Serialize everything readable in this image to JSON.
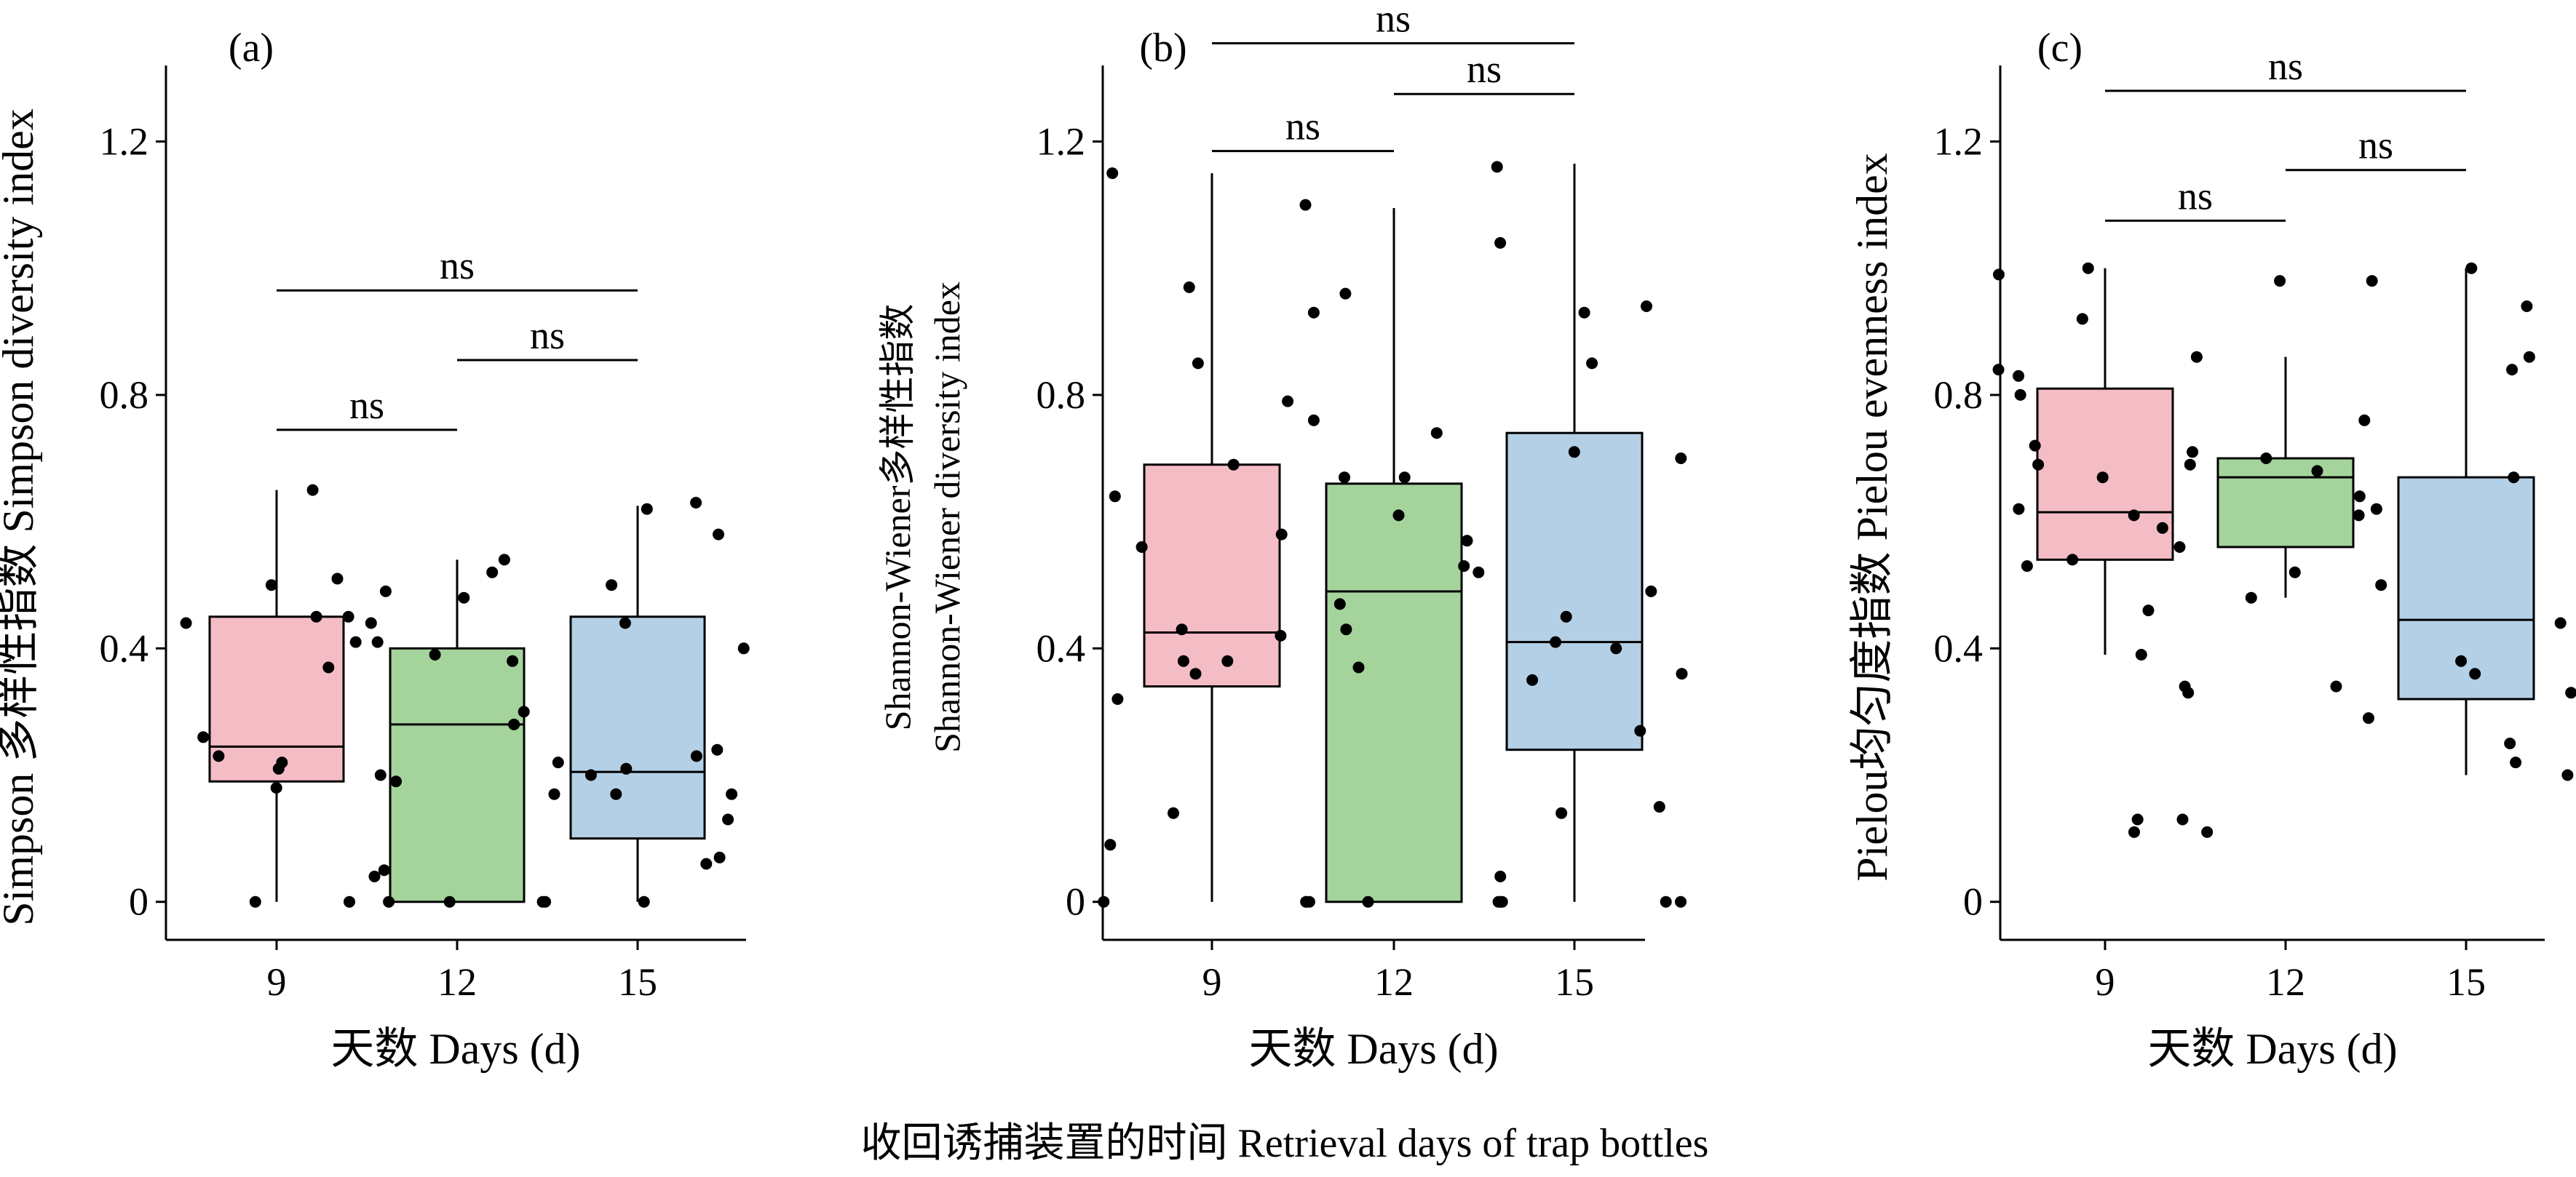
{
  "figure": {
    "caption": "收回诱捕装置的时间 Retrieval days of trap bottles"
  },
  "colors": {
    "box_9": "#f4bcc4",
    "box_12": "#a4d49c",
    "box_15": "#b4d0e6",
    "point": "#000000"
  },
  "chart_data": [
    {
      "type": "box",
      "panel_label": "(a)",
      "ylabel": "Simpson 多样性指数 Simpson diversity index",
      "xlabel": "天数 Days (d)",
      "categories": [
        "9",
        "12",
        "15"
      ],
      "ylim": [
        -0.06,
        1.32
      ],
      "yticks": [
        0,
        0.4,
        0.8,
        1.2
      ],
      "ytick_labels": [
        "0",
        "0.4",
        "0.8",
        "1.2"
      ],
      "grid": false,
      "boxes": [
        {
          "category": "9",
          "whisker_low": 0,
          "q1": 0.19,
          "median": 0.245,
          "q3": 0.45,
          "whisker_high": 0.65
        },
        {
          "category": "12",
          "whisker_low": 0,
          "q1": 0,
          "median": 0.28,
          "q3": 0.4,
          "whisker_high": 0.54
        },
        {
          "category": "15",
          "whisker_low": 0,
          "q1": 0.1,
          "median": 0.205,
          "q3": 0.45,
          "whisker_high": 0.625
        }
      ],
      "points": [
        {
          "category": "9",
          "values": [
            0.65,
            0.51,
            0.5,
            0.45,
            0.45,
            0.44,
            0.44,
            0.37,
            0.26,
            0.23,
            0.22,
            0.21,
            0.2,
            0.18,
            0.05,
            0.04,
            0.0
          ]
        },
        {
          "category": "12",
          "values": [
            0.54,
            0.52,
            0.49,
            0.48,
            0.41,
            0.41,
            0.39,
            0.38,
            0.3,
            0.28,
            0.22,
            0.19,
            0.17,
            0.0,
            0.0,
            0.0,
            0.0
          ]
        },
        {
          "category": "15",
          "values": [
            0.63,
            0.62,
            0.58,
            0.5,
            0.44,
            0.4,
            0.24,
            0.23,
            0.21,
            0.2,
            0.17,
            0.17,
            0.13,
            0.07,
            0.06,
            0.0,
            0.0
          ]
        }
      ],
      "significance": [
        {
          "from": "9",
          "to": "12",
          "label": "ns",
          "y": 0.745
        },
        {
          "from": "12",
          "to": "15",
          "label": "ns",
          "y": 0.855
        },
        {
          "from": "9",
          "to": "15",
          "label": "ns",
          "y": 0.965
        }
      ]
    },
    {
      "type": "box",
      "panel_label": "(b)",
      "ylabel": "Shannon-Wiener多样性指数",
      "ylabel2": "Shannon-Wiener diversity index",
      "xlabel": "天数 Days (d)",
      "categories": [
        "9",
        "12",
        "15"
      ],
      "ylim": [
        -0.06,
        1.32
      ],
      "yticks": [
        0,
        0.4,
        0.8,
        1.2
      ],
      "ytick_labels": [
        "0",
        "0.4",
        "0.8",
        "1.2"
      ],
      "grid": false,
      "boxes": [
        {
          "category": "9",
          "whisker_low": 0,
          "q1": 0.34,
          "median": 0.425,
          "q3": 0.69,
          "whisker_high": 1.15
        },
        {
          "category": "12",
          "whisker_low": 0,
          "q1": 0,
          "median": 0.49,
          "q3": 0.66,
          "whisker_high": 1.095
        },
        {
          "category": "15",
          "whisker_low": 0,
          "q1": 0.24,
          "median": 0.41,
          "q3": 0.74,
          "whisker_high": 1.165
        }
      ],
      "points": [
        {
          "category": "9",
          "values": [
            1.15,
            0.97,
            0.85,
            0.79,
            0.76,
            0.69,
            0.64,
            0.58,
            0.56,
            0.43,
            0.42,
            0.38,
            0.38,
            0.36,
            0.32,
            0.14,
            0.09,
            0.0,
            0.0
          ]
        },
        {
          "category": "12",
          "values": [
            1.1,
            0.96,
            0.93,
            0.74,
            0.67,
            0.67,
            0.61,
            0.57,
            0.53,
            0.52,
            0.47,
            0.43,
            0.37,
            0.0,
            0.0,
            0.0,
            0.0,
            0.0
          ]
        },
        {
          "category": "15",
          "values": [
            1.16,
            1.04,
            0.94,
            0.93,
            0.85,
            0.71,
            0.7,
            0.49,
            0.45,
            0.41,
            0.4,
            0.36,
            0.35,
            0.27,
            0.15,
            0.14,
            0.04,
            0.0,
            0.0,
            0.0
          ]
        }
      ],
      "significance": [
        {
          "from": "9",
          "to": "12",
          "label": "ns",
          "y": 1.185
        },
        {
          "from": "12",
          "to": "15",
          "label": "ns",
          "y": 1.275
        },
        {
          "from": "9",
          "to": "15",
          "label": "ns",
          "y": 1.355
        }
      ]
    },
    {
      "type": "box",
      "panel_label": "(c)",
      "ylabel": "Pielou均匀度指数 Pielou evenness index",
      "xlabel": "天数 Days (d)",
      "categories": [
        "9",
        "12",
        "15"
      ],
      "ylim": [
        -0.06,
        1.32
      ],
      "yticks": [
        0,
        0.4,
        0.8,
        1.2
      ],
      "ytick_labels": [
        "0",
        "0.4",
        "0.8",
        "1.2"
      ],
      "grid": false,
      "boxes": [
        {
          "category": "9",
          "whisker_low": 0.39,
          "q1": 0.54,
          "median": 0.615,
          "q3": 0.81,
          "whisker_high": 1.0
        },
        {
          "category": "12",
          "whisker_low": 0.48,
          "q1": 0.56,
          "median": 0.67,
          "q3": 0.7,
          "whisker_high": 0.86
        },
        {
          "category": "15",
          "whisker_low": 0.2,
          "q1": 0.32,
          "median": 0.445,
          "q3": 0.67,
          "whisker_high": 1.0
        }
      ],
      "points": [
        {
          "category": "9",
          "values": [
            1.0,
            0.99,
            0.92,
            0.84,
            0.83,
            0.8,
            0.72,
            0.71,
            0.69,
            0.67,
            0.62,
            0.61,
            0.59,
            0.54,
            0.53,
            0.46,
            0.39,
            0.13,
            0.13,
            0.11,
            0.11
          ]
        },
        {
          "category": "12",
          "values": [
            0.98,
            0.98,
            0.86,
            0.76,
            0.7,
            0.69,
            0.68,
            0.62,
            0.61,
            0.56,
            0.52,
            0.48,
            0.34,
            0.34,
            0.33
          ]
        },
        {
          "category": "15",
          "values": [
            1.0,
            0.94,
            0.86,
            0.84,
            0.67,
            0.64,
            0.5,
            0.44,
            0.38,
            0.36,
            0.33,
            0.29,
            0.25,
            0.22,
            0.2
          ]
        }
      ],
      "significance": [
        {
          "from": "9",
          "to": "12",
          "label": "ns",
          "y": 1.075
        },
        {
          "from": "12",
          "to": "15",
          "label": "ns",
          "y": 1.155
        },
        {
          "from": "9",
          "to": "15",
          "label": "ns",
          "y": 1.28
        }
      ]
    }
  ]
}
